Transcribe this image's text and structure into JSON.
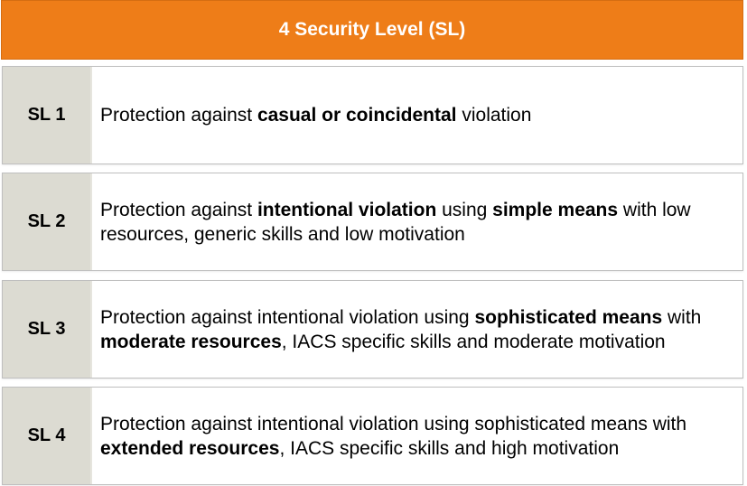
{
  "header": {
    "title": "4 Security Level (SL)",
    "color": "#ee7d18"
  },
  "rows": [
    {
      "label": "SL 1",
      "segments": [
        {
          "text": "Protection against ",
          "bold": false
        },
        {
          "text": "casual or coincidental",
          "bold": true
        },
        {
          "text": " violation",
          "bold": false
        }
      ]
    },
    {
      "label": "SL 2",
      "segments": [
        {
          "text": "Protection against ",
          "bold": false
        },
        {
          "text": "intentional violation",
          "bold": true
        },
        {
          "text": " using ",
          "bold": false
        },
        {
          "text": "simple means",
          "bold": true
        },
        {
          "text": " with low resources, generic skills and low motivation",
          "bold": false
        }
      ]
    },
    {
      "label": "SL 3",
      "segments": [
        {
          "text": "Protection against intentional violation using ",
          "bold": false
        },
        {
          "text": "sophisticated means",
          "bold": true
        },
        {
          "text": " with ",
          "bold": false
        },
        {
          "text": "moderate resources",
          "bold": true
        },
        {
          "text": ", IACS specific skills and moderate motivation",
          "bold": false
        }
      ]
    },
    {
      "label": "SL 4",
      "segments": [
        {
          "text": "Protection against intentional violation using sophisticated means with ",
          "bold": false
        },
        {
          "text": "extended resources",
          "bold": true
        },
        {
          "text": ", IACS specific skills and high motivation",
          "bold": false
        }
      ]
    }
  ],
  "colors": {
    "label_cell": "#dcdbd2",
    "border": "#bfbfbf"
  }
}
